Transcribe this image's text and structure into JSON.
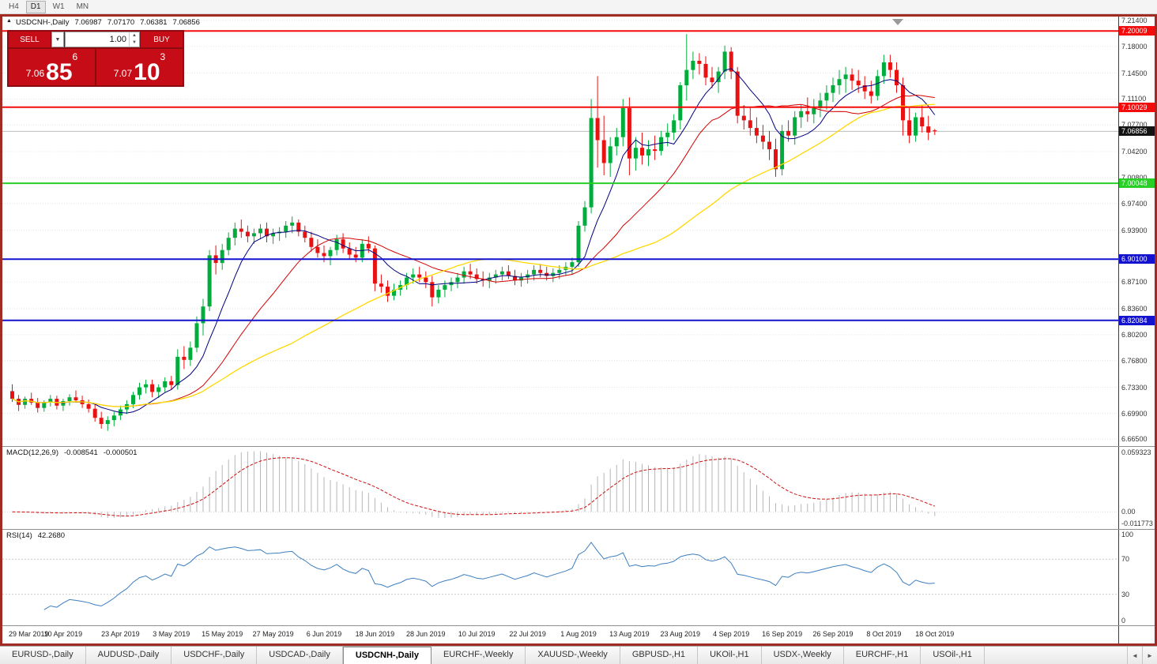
{
  "toolbar": {
    "timeframes": [
      {
        "label": "H4",
        "active": false
      },
      {
        "label": "D1",
        "active": true
      },
      {
        "label": "W1",
        "active": false
      },
      {
        "label": "MN",
        "active": false
      }
    ]
  },
  "icons": {
    "collapse": "▲",
    "dropdown": "▼",
    "spin_up": "▲",
    "spin_down": "▼",
    "tab_left": "◄",
    "tab_right": "►"
  },
  "window": {
    "title_symbol": "USDCNH-,Daily",
    "quote_open": "7.06987",
    "quote_high": "7.07170",
    "quote_low": "7.06381",
    "quote_close": "7.06856"
  },
  "trade_panel": {
    "sell_label": "SELL",
    "buy_label": "BUY",
    "volume": "1.00",
    "sell_price_main": "7.06",
    "sell_price_big": "85",
    "sell_price_sup": "6",
    "buy_price_main": "7.07",
    "buy_price_big": "10",
    "buy_price_sup": "3"
  },
  "macd": {
    "label": "MACD(12,26,9)",
    "value_main": "-0.008541",
    "value_signal": "-0.000501",
    "axis": [
      "0.059323",
      "0.00",
      "-0.011773"
    ]
  },
  "rsi": {
    "label": "RSI(14)",
    "value": "42.2680",
    "axis": [
      "100",
      "70",
      "30",
      "0"
    ]
  },
  "price_axis": {
    "ticks": [
      "7.21400",
      "7.18000",
      "7.14500",
      "7.11100",
      "7.07700",
      "7.04200",
      "7.00800",
      "6.97400",
      "6.93900",
      "6.87100",
      "6.83600",
      "6.80200",
      "6.76800",
      "6.73300",
      "6.69900",
      "6.66500"
    ],
    "current": "7.06856"
  },
  "tabs": {
    "items": [
      {
        "label": "EURUSD-,Daily",
        "active": false
      },
      {
        "label": "AUDUSD-,Daily",
        "active": false
      },
      {
        "label": "USDCHF-,Daily",
        "active": false
      },
      {
        "label": "USDCAD-,Daily",
        "active": false
      },
      {
        "label": "USDCNH-,Daily",
        "active": true
      },
      {
        "label": "EURCHF-,Weekly",
        "active": false
      },
      {
        "label": "XAUUSD-,Weekly",
        "active": false
      },
      {
        "label": "GBPUSD-,H1",
        "active": false
      },
      {
        "label": "UKOil-,H1",
        "active": false
      },
      {
        "label": "USDX-,Weekly",
        "active": false
      },
      {
        "label": "EURCHF-,H1",
        "active": false
      },
      {
        "label": "USOil-,H1",
        "active": false
      }
    ]
  },
  "chart_data": {
    "type": "candlestick",
    "title": "USDCNH-,Daily",
    "ohlc_display": "7.06987 7.07170 7.06381 7.06856",
    "y_range": [
      6.656,
      7.219
    ],
    "current_price": 7.06856,
    "bull_color": "#00ad3c",
    "bear_color": "#e81212",
    "hlines": [
      {
        "price": 7.20009,
        "label": "7.20009",
        "color": "#f20c0c"
      },
      {
        "price": 7.10029,
        "label": "7.10029",
        "color": "#f20c0c"
      },
      {
        "price": 7.00048,
        "label": "7.00048",
        "color": "#27cf27"
      },
      {
        "price": 6.901,
        "label": "6.90100",
        "color": "#1212cf"
      },
      {
        "price": 6.82084,
        "label": "6.82084",
        "color": "#1212cf"
      }
    ],
    "moving_averages": [
      {
        "period": 8,
        "color": "#000080",
        "width": 1
      },
      {
        "period": 20,
        "color": "#d40000",
        "width": 1
      },
      {
        "period": 45,
        "color": "#ffd800",
        "width": 1.3
      }
    ],
    "macd_settings": {
      "fast": 12,
      "slow": 26,
      "signal": 9,
      "hist_color": "#b6b6b6",
      "signal_color": "#cc1111",
      "range": [
        -0.0165,
        0.0625
      ]
    },
    "rsi_settings": {
      "period": 14,
      "color": "#3c7ebf",
      "levels": [
        30,
        70
      ]
    },
    "x_labels": [
      {
        "index": 0,
        "text": "29 Mar 2019"
      },
      {
        "index": 8,
        "text": "10 Apr 2019"
      },
      {
        "index": 17,
        "text": "23 Apr 2019"
      },
      {
        "index": 25,
        "text": "3 May 2019"
      },
      {
        "index": 33,
        "text": "15 May 2019"
      },
      {
        "index": 41,
        "text": "27 May 2019"
      },
      {
        "index": 49,
        "text": "6 Jun 2019"
      },
      {
        "index": 57,
        "text": "18 Jun 2019"
      },
      {
        "index": 65,
        "text": "28 Jun 2019"
      },
      {
        "index": 73,
        "text": "10 Jul 2019"
      },
      {
        "index": 81,
        "text": "22 Jul 2019"
      },
      {
        "index": 89,
        "text": "1 Aug 2019"
      },
      {
        "index": 97,
        "text": "13 Aug 2019"
      },
      {
        "index": 105,
        "text": "23 Aug 2019"
      },
      {
        "index": 113,
        "text": "4 Sep 2019"
      },
      {
        "index": 121,
        "text": "16 Sep 2019"
      },
      {
        "index": 129,
        "text": "26 Sep 2019"
      },
      {
        "index": 137,
        "text": "8 Oct 2019"
      },
      {
        "index": 145,
        "text": "18 Oct 2019"
      }
    ],
    "candles": [
      [
        6.728,
        6.737,
        6.714,
        6.718
      ],
      [
        6.718,
        6.723,
        6.702,
        6.71
      ],
      [
        6.71,
        6.721,
        6.705,
        6.718
      ],
      [
        6.718,
        6.726,
        6.71,
        6.713
      ],
      [
        6.713,
        6.719,
        6.7,
        6.706
      ],
      [
        6.706,
        6.716,
        6.701,
        6.713
      ],
      [
        6.713,
        6.723,
        6.708,
        6.718
      ],
      [
        6.718,
        6.722,
        6.704,
        6.709
      ],
      [
        6.709,
        6.718,
        6.702,
        6.715
      ],
      [
        6.715,
        6.724,
        6.709,
        6.72
      ],
      [
        6.72,
        6.729,
        6.713,
        6.716
      ],
      [
        6.716,
        6.722,
        6.706,
        6.711
      ],
      [
        6.711,
        6.717,
        6.7,
        6.705
      ],
      [
        6.705,
        6.711,
        6.688,
        6.693
      ],
      [
        6.693,
        6.701,
        6.679,
        6.685
      ],
      [
        6.685,
        6.695,
        6.676,
        6.69
      ],
      [
        6.69,
        6.701,
        6.682,
        6.696
      ],
      [
        6.696,
        6.709,
        6.69,
        6.704
      ],
      [
        6.704,
        6.716,
        6.698,
        6.711
      ],
      [
        6.711,
        6.727,
        6.706,
        6.723
      ],
      [
        6.723,
        6.739,
        6.717,
        6.733
      ],
      [
        6.733,
        6.743,
        6.725,
        6.737
      ],
      [
        6.737,
        6.743,
        6.72,
        6.727
      ],
      [
        6.727,
        6.737,
        6.719,
        6.733
      ],
      [
        6.733,
        6.746,
        6.727,
        6.741
      ],
      [
        6.741,
        6.748,
        6.73,
        6.736
      ],
      [
        6.736,
        6.783,
        6.73,
        6.773
      ],
      [
        6.773,
        6.787,
        6.757,
        6.769
      ],
      [
        6.769,
        6.793,
        6.761,
        6.785
      ],
      [
        6.785,
        6.826,
        6.779,
        6.817
      ],
      [
        6.817,
        6.849,
        6.801,
        6.839
      ],
      [
        6.839,
        6.913,
        6.833,
        6.906
      ],
      [
        6.906,
        6.919,
        6.881,
        6.896
      ],
      [
        6.896,
        6.921,
        6.887,
        6.913
      ],
      [
        6.913,
        6.936,
        6.906,
        6.929
      ],
      [
        6.929,
        6.949,
        6.919,
        6.941
      ],
      [
        6.941,
        6.953,
        6.929,
        6.937
      ],
      [
        6.937,
        6.945,
        6.923,
        6.931
      ],
      [
        6.931,
        6.941,
        6.921,
        6.935
      ],
      [
        6.935,
        6.947,
        6.927,
        6.941
      ],
      [
        6.941,
        6.949,
        6.923,
        6.931
      ],
      [
        6.931,
        6.941,
        6.921,
        6.935
      ],
      [
        6.935,
        6.943,
        6.925,
        6.937
      ],
      [
        6.937,
        6.951,
        6.929,
        6.945
      ],
      [
        6.945,
        6.957,
        6.935,
        6.949
      ],
      [
        6.949,
        6.953,
        6.931,
        6.937
      ],
      [
        6.937,
        6.945,
        6.923,
        6.929
      ],
      [
        6.929,
        6.937,
        6.911,
        6.917
      ],
      [
        6.917,
        6.927,
        6.903,
        6.909
      ],
      [
        6.909,
        6.919,
        6.897,
        6.905
      ],
      [
        6.905,
        6.917,
        6.893,
        6.913
      ],
      [
        6.913,
        6.933,
        6.906,
        6.927
      ],
      [
        6.927,
        6.935,
        6.909,
        6.915
      ],
      [
        6.915,
        6.923,
        6.901,
        6.907
      ],
      [
        6.907,
        6.917,
        6.897,
        6.903
      ],
      [
        6.903,
        6.927,
        6.897,
        6.921
      ],
      [
        6.921,
        6.931,
        6.909,
        6.915
      ],
      [
        6.915,
        6.919,
        6.859,
        6.869
      ],
      [
        6.869,
        6.881,
        6.857,
        6.865
      ],
      [
        6.865,
        6.873,
        6.845,
        6.853
      ],
      [
        6.853,
        6.869,
        6.847,
        6.861
      ],
      [
        6.861,
        6.873,
        6.853,
        6.867
      ],
      [
        6.867,
        6.883,
        6.861,
        6.877
      ],
      [
        6.877,
        6.889,
        6.869,
        6.881
      ],
      [
        6.881,
        6.891,
        6.871,
        6.877
      ],
      [
        6.877,
        6.885,
        6.863,
        6.871
      ],
      [
        6.871,
        6.879,
        6.839,
        6.851
      ],
      [
        6.851,
        6.867,
        6.843,
        6.861
      ],
      [
        6.861,
        6.873,
        6.851,
        6.867
      ],
      [
        6.867,
        6.877,
        6.859,
        6.871
      ],
      [
        6.871,
        6.883,
        6.863,
        6.877
      ],
      [
        6.877,
        6.891,
        6.869,
        6.885
      ],
      [
        6.885,
        6.895,
        6.875,
        6.881
      ],
      [
        6.881,
        6.889,
        6.869,
        6.875
      ],
      [
        6.875,
        6.885,
        6.865,
        6.873
      ],
      [
        6.873,
        6.883,
        6.863,
        6.877
      ],
      [
        6.877,
        6.887,
        6.869,
        6.881
      ],
      [
        6.881,
        6.891,
        6.873,
        6.885
      ],
      [
        6.885,
        6.893,
        6.875,
        6.879
      ],
      [
        6.879,
        6.887,
        6.867,
        6.873
      ],
      [
        6.873,
        6.883,
        6.865,
        6.877
      ],
      [
        6.877,
        6.887,
        6.869,
        6.881
      ],
      [
        6.881,
        6.893,
        6.873,
        6.887
      ],
      [
        6.887,
        6.895,
        6.877,
        6.883
      ],
      [
        6.883,
        6.891,
        6.873,
        6.879
      ],
      [
        6.879,
        6.889,
        6.871,
        6.883
      ],
      [
        6.883,
        6.893,
        6.875,
        6.887
      ],
      [
        6.887,
        6.897,
        6.879,
        6.891
      ],
      [
        6.891,
        6.903,
        6.881,
        6.897
      ],
      [
        6.897,
        6.951,
        6.891,
        6.945
      ],
      [
        6.945,
        6.977,
        6.937,
        6.969
      ],
      [
        6.969,
        7.111,
        6.961,
        7.086
      ],
      [
        7.086,
        7.141,
        7.021,
        7.057
      ],
      [
        7.057,
        7.089,
        7.011,
        7.027
      ],
      [
        7.027,
        7.061,
        7.009,
        7.049
      ],
      [
        7.049,
        7.073,
        7.037,
        7.061
      ],
      [
        7.061,
        7.111,
        7.049,
        7.099
      ],
      [
        7.099,
        7.113,
        7.011,
        7.033
      ],
      [
        7.033,
        7.061,
        7.017,
        7.047
      ],
      [
        7.047,
        7.067,
        7.025,
        7.037
      ],
      [
        7.037,
        7.057,
        7.023,
        7.045
      ],
      [
        7.045,
        7.063,
        7.031,
        7.043
      ],
      [
        7.043,
        7.069,
        7.037,
        7.061
      ],
      [
        7.061,
        7.079,
        7.049,
        7.067
      ],
      [
        7.067,
        7.091,
        7.057,
        7.083
      ],
      [
        7.083,
        7.133,
        7.071,
        7.129
      ],
      [
        7.129,
        7.196,
        7.109,
        7.149
      ],
      [
        7.149,
        7.173,
        7.137,
        7.161
      ],
      [
        7.161,
        7.171,
        7.143,
        7.157
      ],
      [
        7.157,
        7.167,
        7.129,
        7.139
      ],
      [
        7.139,
        7.153,
        7.125,
        7.133
      ],
      [
        7.133,
        7.153,
        7.119,
        7.147
      ],
      [
        7.147,
        7.181,
        7.137,
        7.173
      ],
      [
        7.173,
        7.179,
        7.137,
        7.147
      ],
      [
        7.147,
        7.153,
        7.079,
        7.089
      ],
      [
        7.089,
        7.103,
        7.071,
        7.083
      ],
      [
        7.083,
        7.099,
        7.063,
        7.073
      ],
      [
        7.073,
        7.087,
        7.053,
        7.063
      ],
      [
        7.063,
        7.077,
        7.045,
        7.055
      ],
      [
        7.055,
        7.069,
        7.031,
        7.045
      ],
      [
        7.045,
        7.059,
        7.009,
        7.019
      ],
      [
        7.019,
        7.077,
        7.011,
        7.069
      ],
      [
        7.069,
        7.083,
        7.055,
        7.063
      ],
      [
        7.063,
        7.095,
        7.051,
        7.087
      ],
      [
        7.087,
        7.103,
        7.073,
        7.095
      ],
      [
        7.095,
        7.113,
        7.081,
        7.091
      ],
      [
        7.091,
        7.111,
        7.079,
        7.099
      ],
      [
        7.099,
        7.119,
        7.087,
        7.109
      ],
      [
        7.109,
        7.129,
        7.097,
        7.119
      ],
      [
        7.119,
        7.139,
        7.107,
        7.129
      ],
      [
        7.129,
        7.149,
        7.117,
        7.137
      ],
      [
        7.137,
        7.153,
        7.119,
        7.143
      ],
      [
        7.143,
        7.151,
        7.123,
        7.135
      ],
      [
        7.135,
        7.149,
        7.119,
        7.129
      ],
      [
        7.129,
        7.141,
        7.111,
        7.121
      ],
      [
        7.121,
        7.135,
        7.105,
        7.115
      ],
      [
        7.115,
        7.149,
        7.109,
        7.141
      ],
      [
        7.141,
        7.169,
        7.131,
        7.159
      ],
      [
        7.159,
        7.169,
        7.139,
        7.149
      ],
      [
        7.149,
        7.159,
        7.119,
        7.129
      ],
      [
        7.129,
        7.139,
        7.063,
        7.083
      ],
      [
        7.083,
        7.099,
        7.053,
        7.063
      ],
      [
        7.063,
        7.093,
        7.055,
        7.087
      ],
      [
        7.087,
        7.103,
        7.067,
        7.075
      ],
      [
        7.075,
        7.089,
        7.057,
        7.067
      ],
      [
        7.0699,
        7.0717,
        7.0638,
        7.0686
      ]
    ]
  }
}
